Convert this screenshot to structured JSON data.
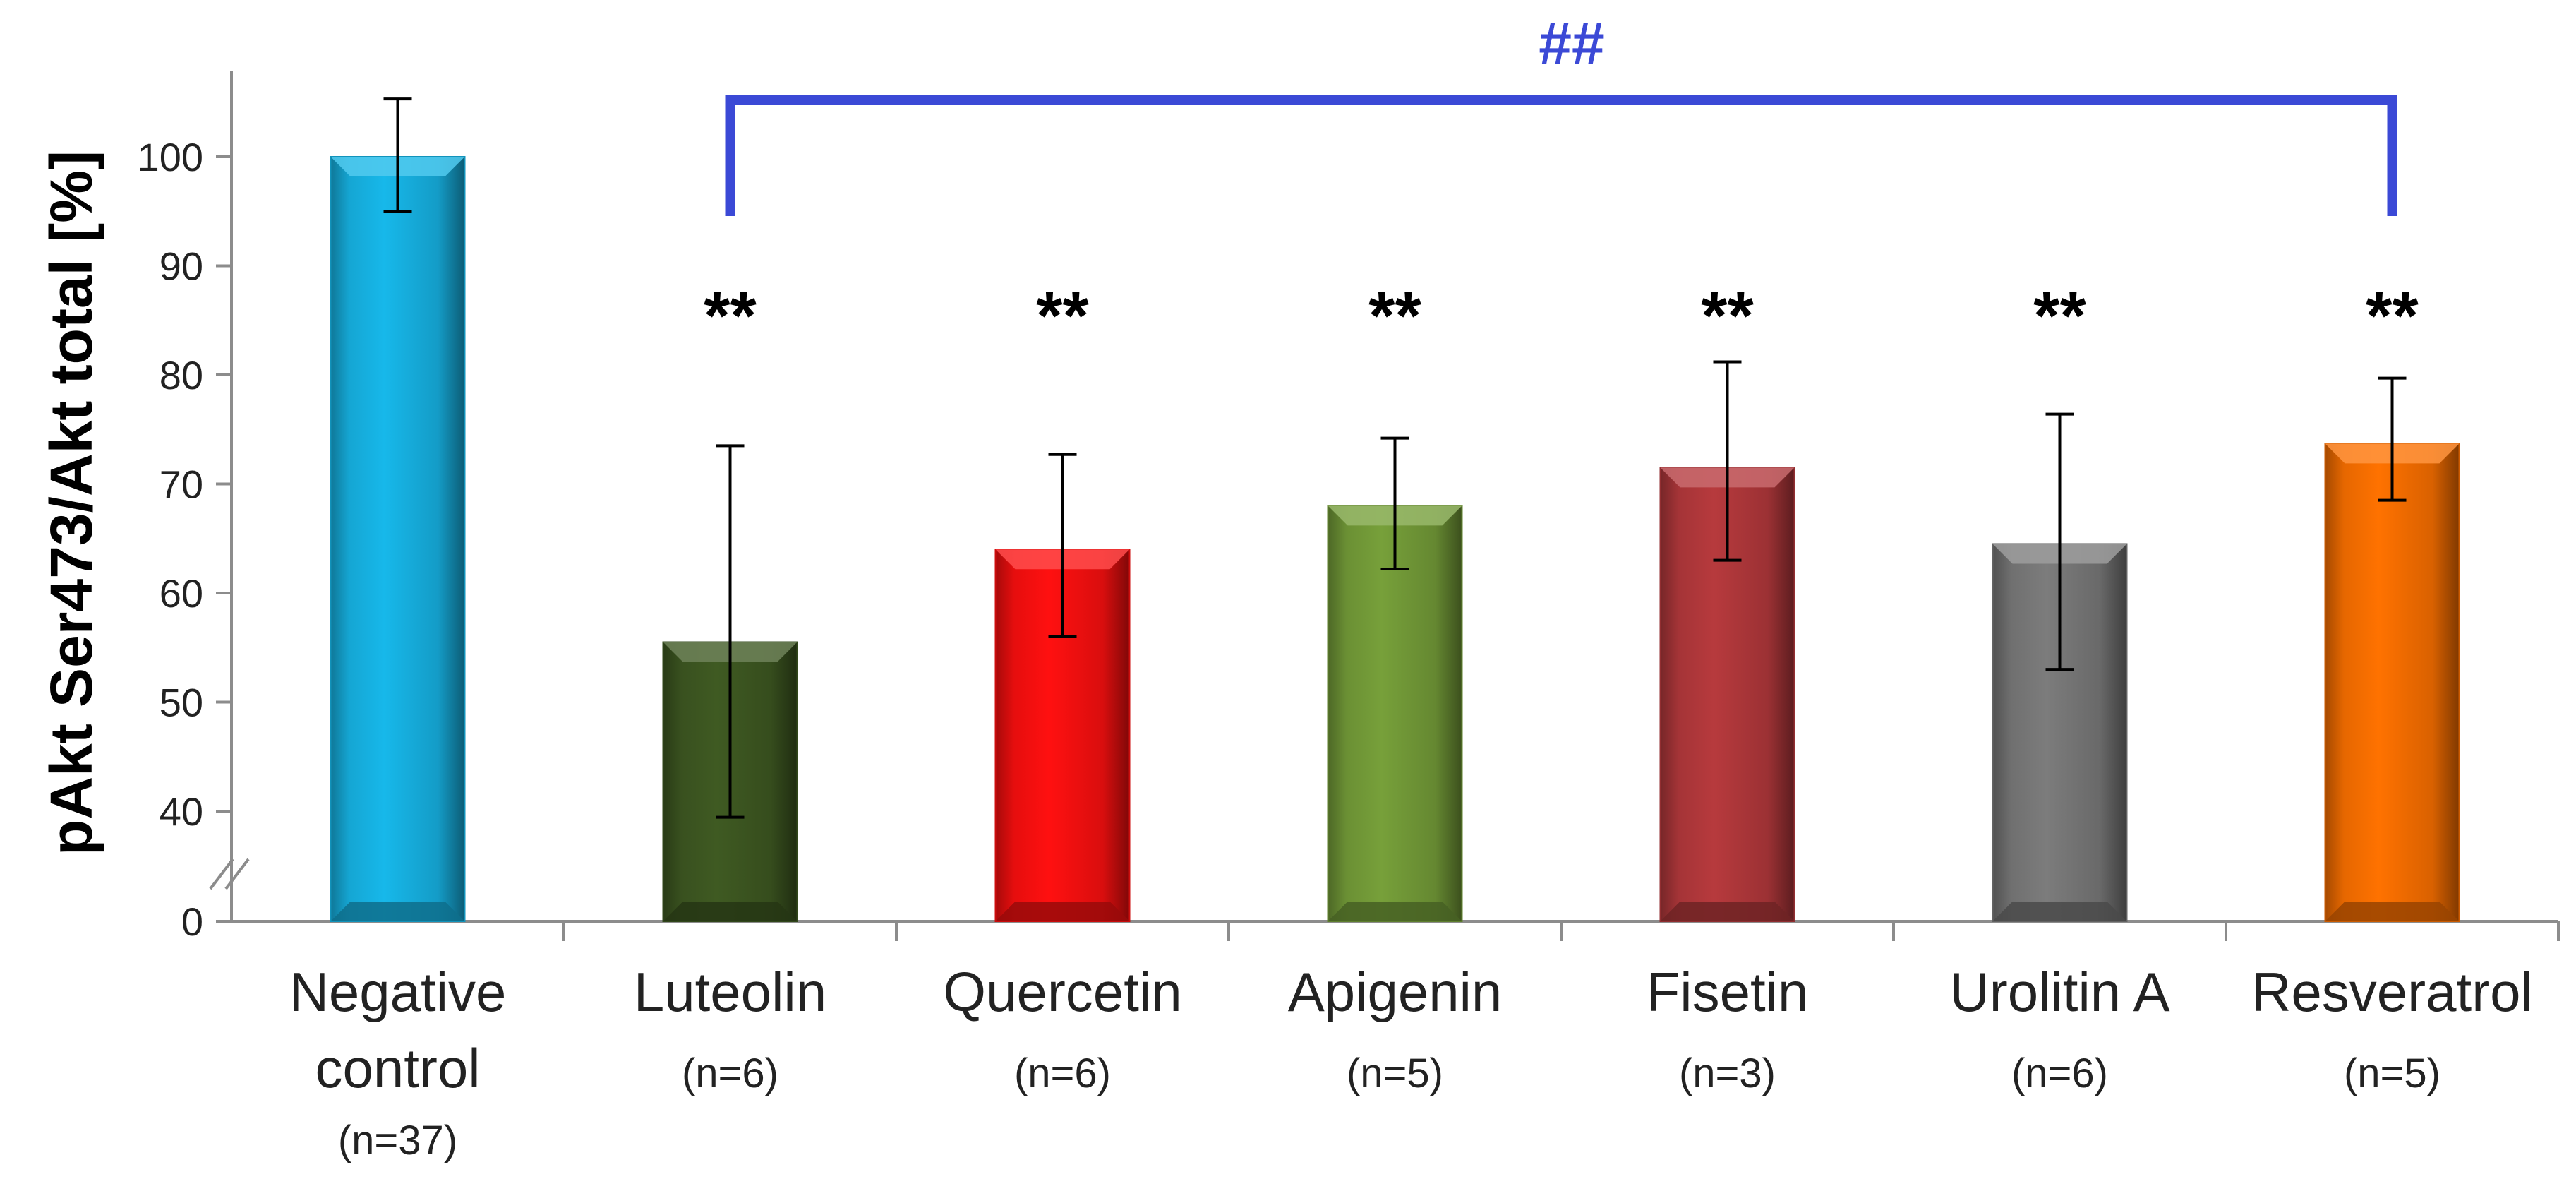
{
  "chart_data": {
    "type": "bar",
    "ylabel": "pAkt Ser473/Akt total [%]",
    "ylim": [
      0,
      100
    ],
    "yticks": [
      0,
      40,
      50,
      60,
      70,
      80,
      90,
      100
    ],
    "axis_break": "between 0 and 40",
    "categories": [
      {
        "name": "Negative control",
        "line1": "Negative",
        "line2": "control",
        "n": "(n=37)"
      },
      {
        "name": "Luteolin",
        "line1": "Luteolin",
        "line2": "",
        "n": "(n=6)"
      },
      {
        "name": "Quercetin",
        "line1": "Quercetin",
        "line2": "",
        "n": "(n=6)"
      },
      {
        "name": "Apigenin",
        "line1": "Apigenin",
        "line2": "",
        "n": "(n=5)"
      },
      {
        "name": "Fisetin",
        "line1": "Fisetin",
        "line2": "",
        "n": "(n=3)"
      },
      {
        "name": "Urolitin A",
        "line1": "Urolitin A",
        "line2": "",
        "n": "(n=6)"
      },
      {
        "name": "Resveratrol",
        "line1": "Resveratrol",
        "line2": "",
        "n": "(n=5)"
      }
    ],
    "values": [
      100,
      55.5,
      64,
      68,
      71.5,
      64.5,
      73.7
    ],
    "error_low": [
      95,
      37.8,
      56,
      62.2,
      63,
      53,
      68.5
    ],
    "error_high": [
      105.3,
      73.5,
      72.7,
      74.2,
      81.2,
      76.4,
      79.7
    ],
    "colors": [
      "#17b8ea",
      "#3f5a22",
      "#ff1010",
      "#77a03a",
      "#b73a3d",
      "#7c7c7c",
      "#ff7200"
    ],
    "significance": [
      "",
      "**",
      "**",
      "**",
      "**",
      "**",
      "**"
    ],
    "bracket": {
      "label": "##",
      "from_category": 1,
      "to_category": 6,
      "color": "#3b49d6"
    }
  }
}
